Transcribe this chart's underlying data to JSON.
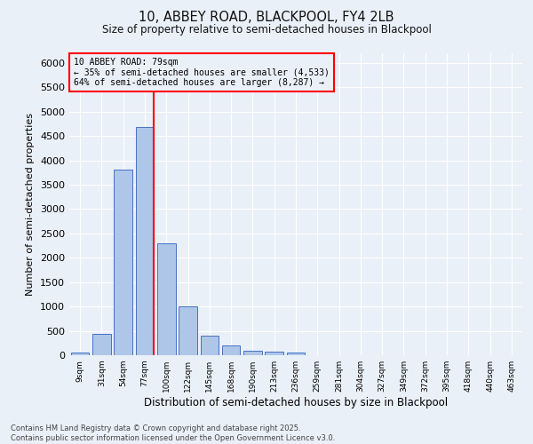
{
  "title1": "10, ABBEY ROAD, BLACKPOOL, FY4 2LB",
  "title2": "Size of property relative to semi-detached houses in Blackpool",
  "xlabel": "Distribution of semi-detached houses by size in Blackpool",
  "ylabel": "Number of semi-detached properties",
  "bar_labels": [
    "9sqm",
    "31sqm",
    "54sqm",
    "77sqm",
    "100sqm",
    "122sqm",
    "145sqm",
    "168sqm",
    "190sqm",
    "213sqm",
    "236sqm",
    "259sqm",
    "281sqm",
    "304sqm",
    "327sqm",
    "349sqm",
    "372sqm",
    "395sqm",
    "418sqm",
    "440sqm",
    "463sqm"
  ],
  "bar_values": [
    50,
    440,
    3820,
    4680,
    2300,
    1000,
    400,
    200,
    90,
    70,
    50,
    0,
    0,
    0,
    0,
    0,
    0,
    0,
    0,
    0,
    0
  ],
  "bar_color": "#aec6e8",
  "bar_edge_color": "#4472c4",
  "vline_color": "red",
  "vline_x_index": 3,
  "annotation_text": "10 ABBEY ROAD: 79sqm\n← 35% of semi-detached houses are smaller (4,533)\n64% of semi-detached houses are larger (8,287) →",
  "ylim": [
    0,
    6200
  ],
  "yticks": [
    0,
    500,
    1000,
    1500,
    2000,
    2500,
    3000,
    3500,
    4000,
    4500,
    5000,
    5500,
    6000
  ],
  "bg_color": "#eaf0f8",
  "footer": "Contains HM Land Registry data © Crown copyright and database right 2025.\nContains public sector information licensed under the Open Government Licence v3.0.",
  "grid_color": "#ffffff"
}
